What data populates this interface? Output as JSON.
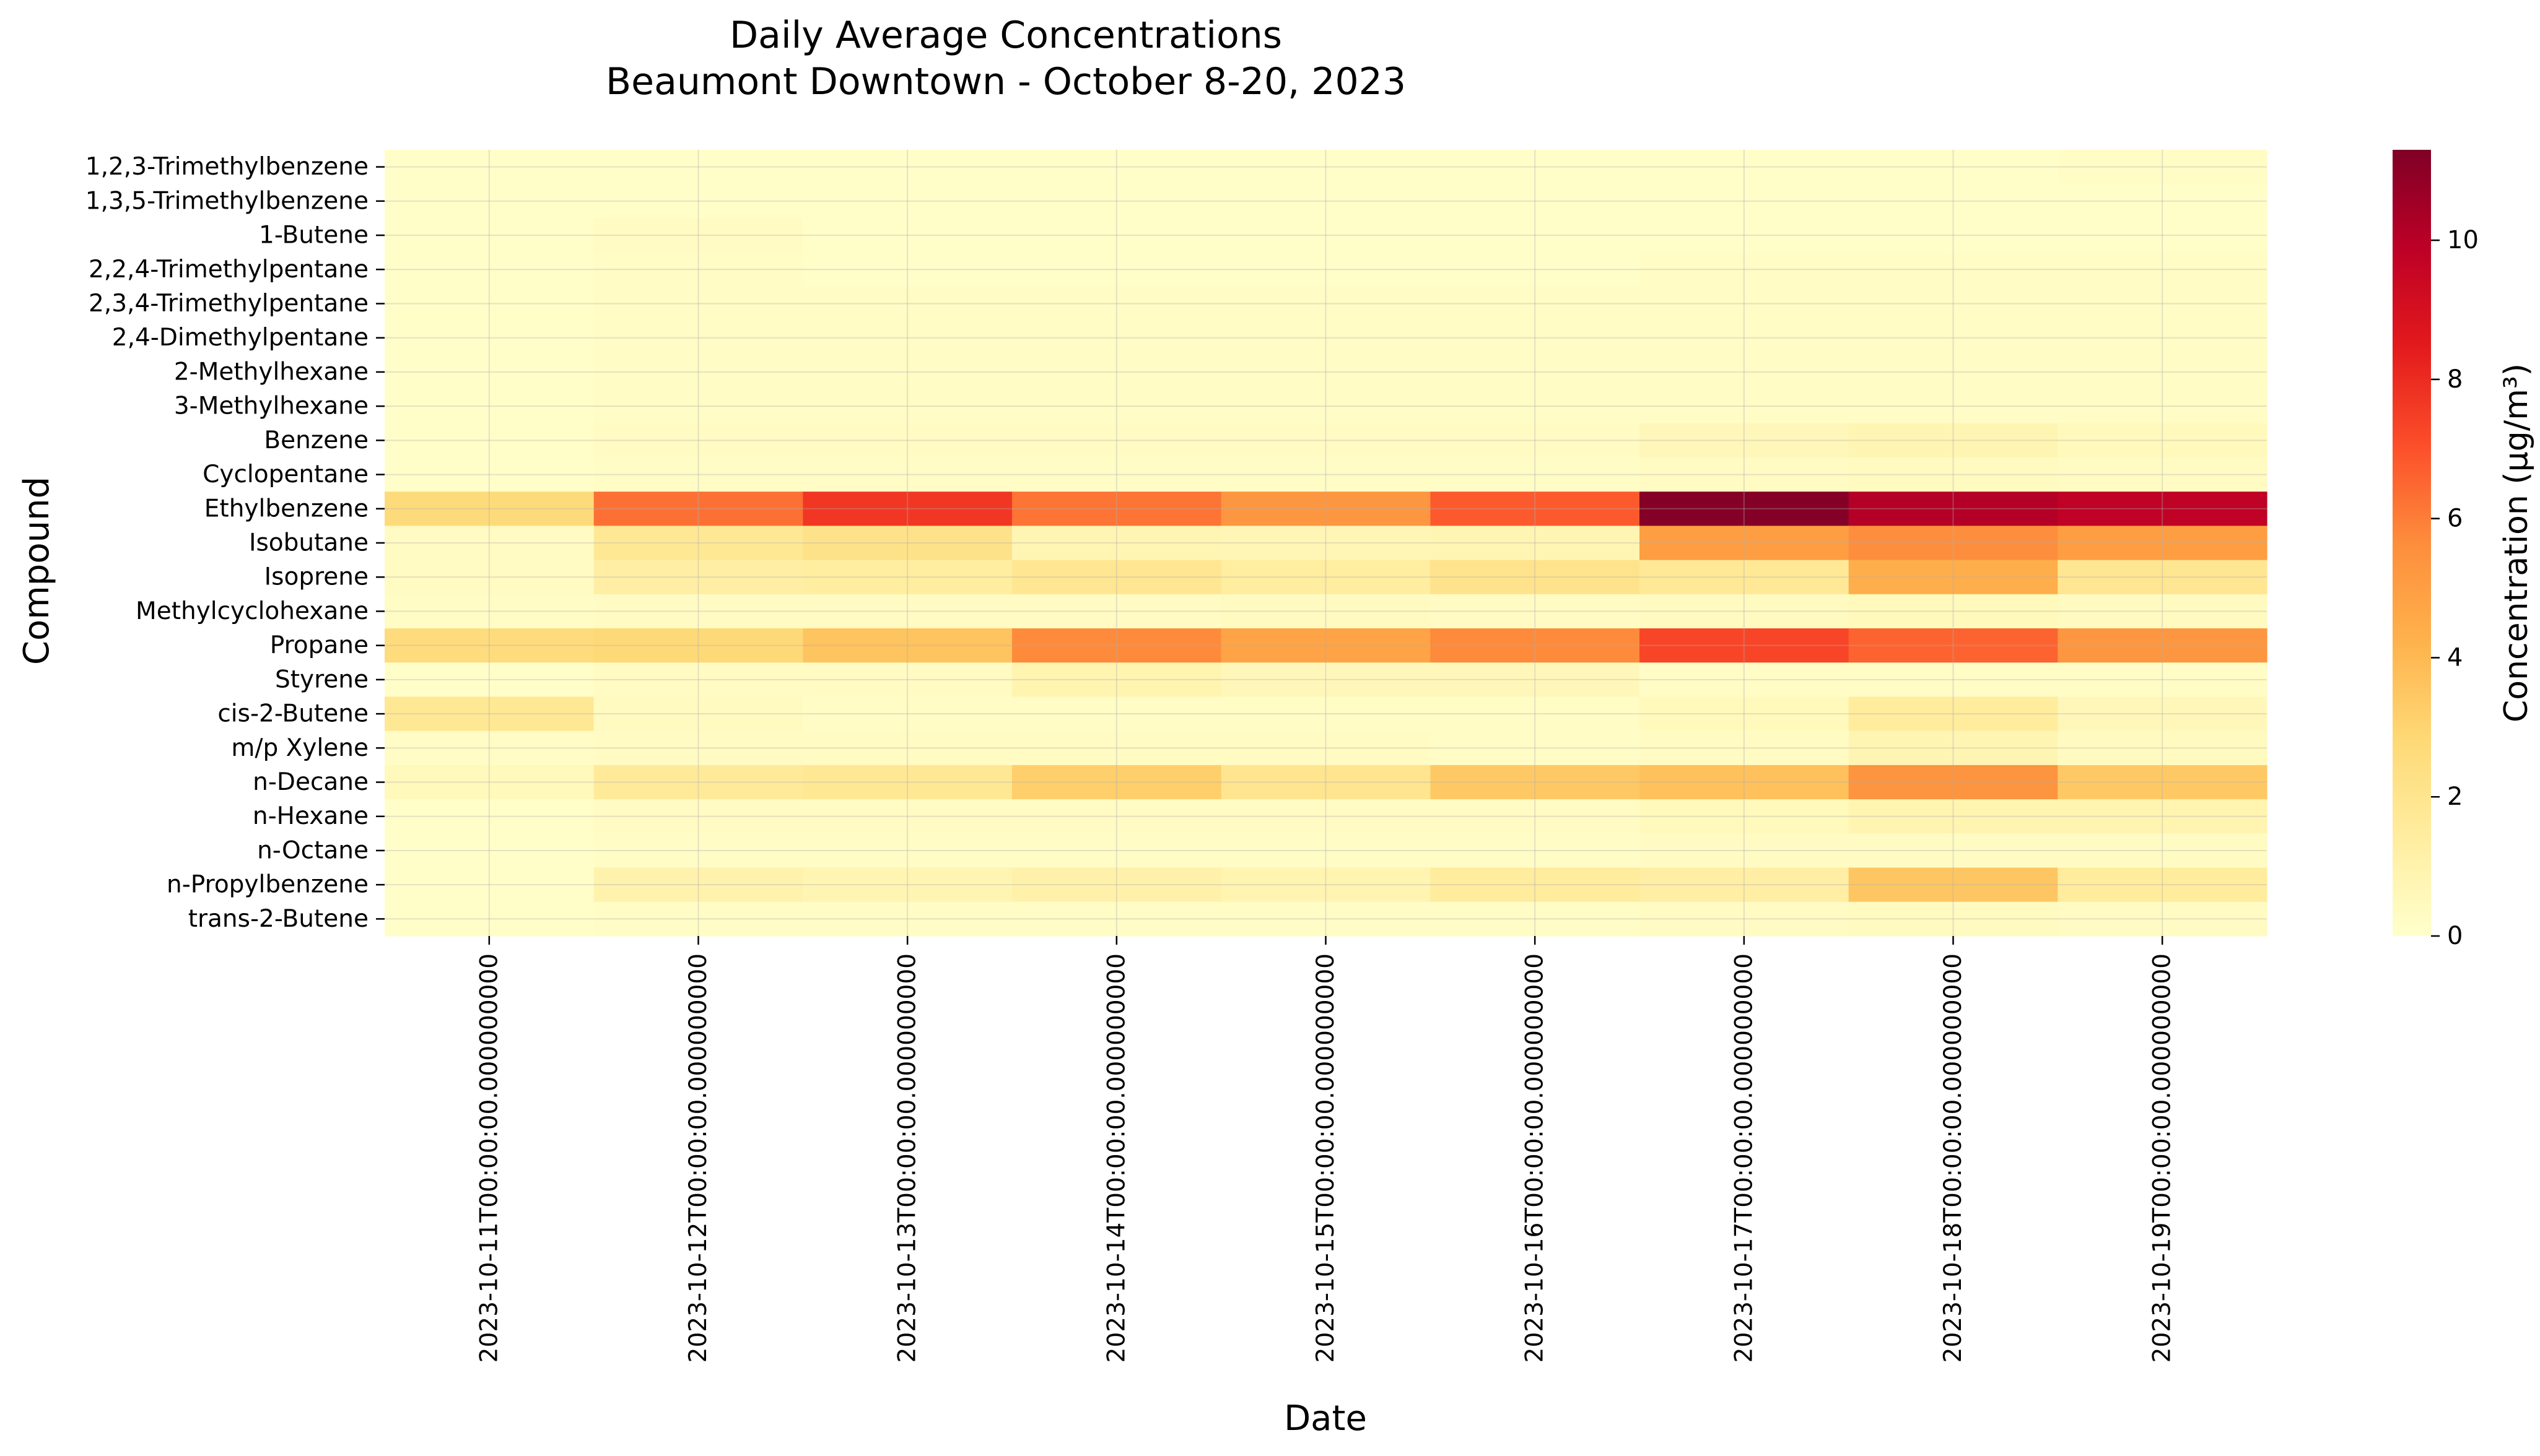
{
  "chart_data": {
    "type": "heatmap",
    "title": "Daily Average Concentrations\nBeaumont Downtown - October 8-20, 2023",
    "xlabel": "Date",
    "ylabel": "Compound",
    "colorbar_label": "Concentration (µg/m³)",
    "colormap": "YlOrRd",
    "color_stops": [
      "#ffffcc",
      "#ffeda0",
      "#fed976",
      "#feb24c",
      "#fd8d3c",
      "#fc4e2a",
      "#e31a1c",
      "#bd0026",
      "#800026"
    ],
    "vmin": 0,
    "vmax": 11.3,
    "colorbar_ticks": [
      0,
      2,
      4,
      6,
      8,
      10
    ],
    "grid": true,
    "x": [
      "2023-10-11T00:00:00.000000000",
      "2023-10-12T00:00:00.000000000",
      "2023-10-13T00:00:00.000000000",
      "2023-10-14T00:00:00.000000000",
      "2023-10-15T00:00:00.000000000",
      "2023-10-16T00:00:00.000000000",
      "2023-10-17T00:00:00.000000000",
      "2023-10-18T00:00:00.000000000",
      "2023-10-19T00:00:00.000000000"
    ],
    "y": [
      "1,2,3-Trimethylbenzene",
      "1,3,5-Trimethylbenzene",
      "1-Butene",
      "2,2,4-Trimethylpentane",
      "2,3,4-Trimethylpentane",
      "2,4-Dimethylpentane",
      "2-Methylhexane",
      "3-Methylhexane",
      "Benzene",
      "Cyclopentane",
      "Ethylbenzene",
      "Isobutane",
      "Isoprene",
      "Methylcyclohexane",
      "Propane",
      "Styrene",
      "cis-2-Butene",
      "m/p Xylene",
      "n-Decane",
      "n-Hexane",
      "n-Octane",
      "n-Propylbenzene",
      "trans-2-Butene"
    ],
    "values": [
      [
        0.1,
        0.1,
        0.1,
        0.1,
        0.1,
        0.1,
        0.1,
        0.1,
        0.2
      ],
      [
        0.1,
        0.1,
        0.1,
        0.1,
        0.1,
        0.1,
        0.1,
        0.1,
        0.1
      ],
      [
        0.1,
        0.3,
        0.1,
        0.1,
        0.1,
        0.1,
        0.1,
        0.1,
        0.1
      ],
      [
        0.1,
        0.2,
        0.1,
        0.1,
        0.1,
        0.1,
        0.2,
        0.2,
        0.2
      ],
      [
        0.1,
        0.2,
        0.2,
        0.2,
        0.2,
        0.2,
        0.2,
        0.2,
        0.2
      ],
      [
        0.1,
        0.2,
        0.2,
        0.2,
        0.2,
        0.2,
        0.2,
        0.2,
        0.2
      ],
      [
        0.1,
        0.2,
        0.2,
        0.2,
        0.2,
        0.2,
        0.2,
        0.2,
        0.2
      ],
      [
        0.1,
        0.2,
        0.2,
        0.2,
        0.2,
        0.2,
        0.2,
        0.2,
        0.2
      ],
      [
        0.1,
        0.3,
        0.3,
        0.3,
        0.3,
        0.3,
        0.6,
        0.8,
        0.5
      ],
      [
        0.1,
        0.2,
        0.2,
        0.2,
        0.2,
        0.2,
        0.3,
        0.4,
        0.3
      ],
      [
        2.7,
        6.3,
        7.7,
        6.2,
        5.3,
        6.8,
        11.2,
        10.1,
        9.8
      ],
      [
        0.3,
        1.8,
        2.2,
        0.8,
        0.7,
        0.8,
        5.0,
        5.6,
        5.0
      ],
      [
        0.3,
        1.3,
        1.4,
        1.9,
        1.4,
        2.1,
        1.7,
        4.4,
        1.9
      ],
      [
        0.2,
        0.3,
        0.3,
        0.3,
        0.4,
        0.3,
        0.4,
        0.5,
        0.4
      ],
      [
        2.6,
        2.8,
        3.6,
        5.7,
        4.8,
        5.7,
        7.3,
        6.6,
        5.3
      ],
      [
        0.1,
        0.3,
        0.3,
        0.9,
        0.6,
        0.6,
        0.2,
        0.2,
        0.2
      ],
      [
        1.8,
        0.4,
        0.2,
        0.2,
        0.2,
        0.2,
        0.5,
        1.5,
        0.6
      ],
      [
        0.2,
        0.3,
        0.3,
        0.3,
        0.3,
        0.2,
        0.3,
        0.8,
        0.4
      ],
      [
        0.5,
        1.6,
        1.8,
        3.2,
        2.0,
        3.4,
        3.7,
        5.4,
        3.4
      ],
      [
        0.1,
        0.3,
        0.3,
        0.3,
        0.3,
        0.3,
        0.5,
        0.9,
        0.9
      ],
      [
        0.1,
        0.2,
        0.2,
        0.2,
        0.2,
        0.2,
        0.3,
        0.3,
        0.3
      ],
      [
        0.1,
        1.0,
        0.8,
        1.1,
        0.9,
        1.5,
        1.3,
        3.5,
        1.5
      ],
      [
        0.1,
        0.2,
        0.2,
        0.2,
        0.2,
        0.2,
        0.3,
        0.4,
        0.3
      ]
    ]
  }
}
